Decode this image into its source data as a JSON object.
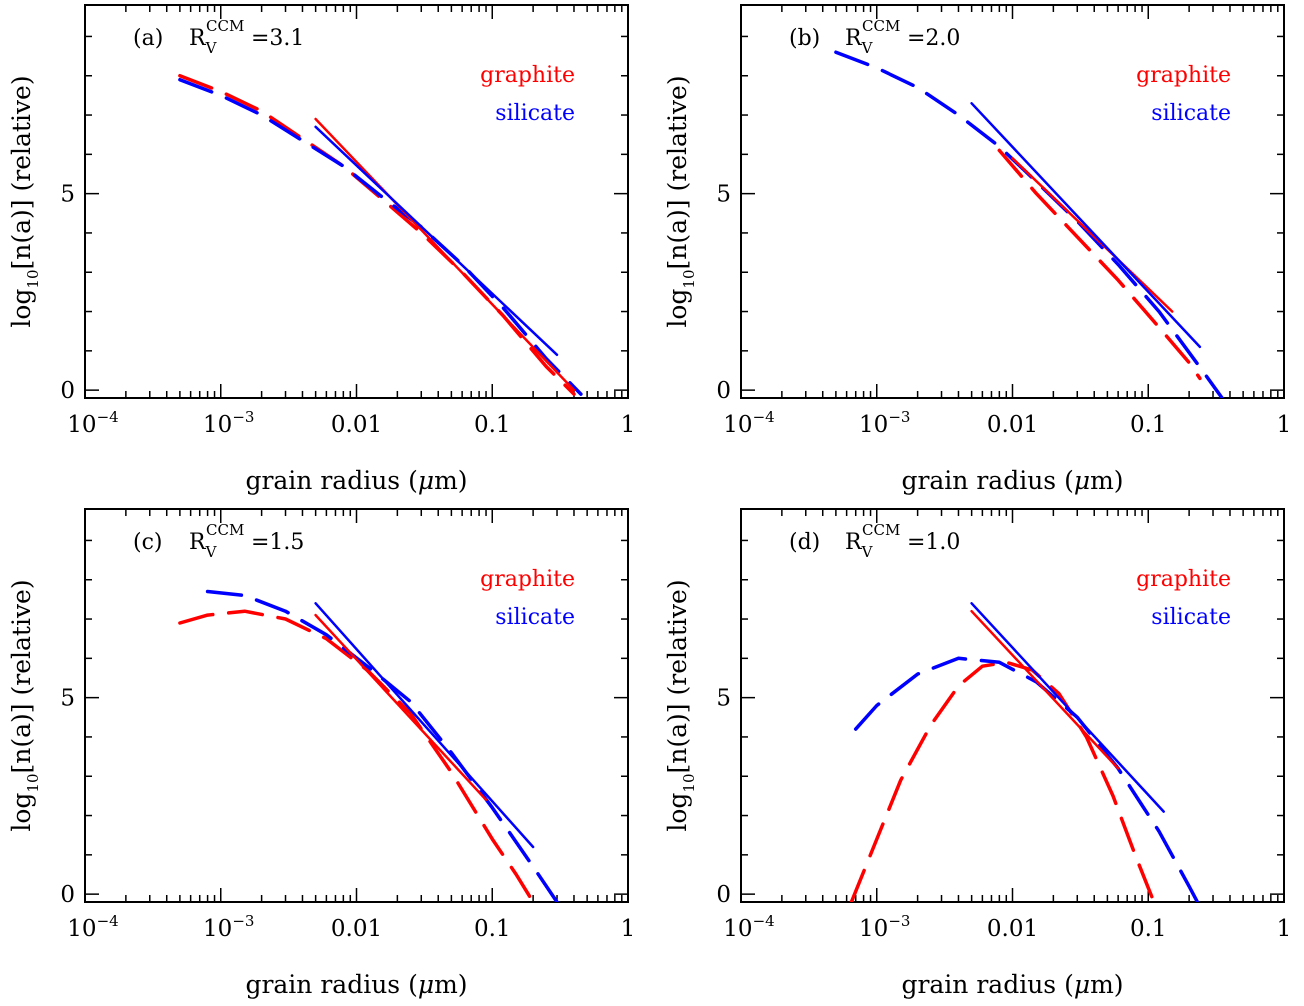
{
  "chart_data": [
    {
      "type": "line",
      "panel_label": "(a)",
      "rv_label": "R",
      "rv_sub": "V",
      "rv_sup": "CCM",
      "rv_value": "=3.1",
      "xlabel_text": "grain radius (",
      "xlabel_mu": "μ",
      "xlabel_end": "m)",
      "ylabel_text": "log",
      "ylabel_sub": "10",
      "ylabel_end": "[n(a)] (relative)",
      "x_scale": "log",
      "xlim": [
        0.0001,
        1
      ],
      "ylim": [
        -0.2,
        9.8
      ],
      "x_ticks": [
        {
          "exp": "-4",
          "value": 0.0001
        },
        {
          "exp": "-3",
          "value": 0.001
        },
        {
          "text": "0.01",
          "value": 0.01
        },
        {
          "text": "0.1",
          "value": 0.1
        },
        {
          "text": "1",
          "value": 1
        }
      ],
      "y_ticks": [
        {
          "text": "0",
          "value": 0
        },
        {
          "text": "5",
          "value": 5
        }
      ],
      "legend": [
        "graphite",
        "silicate"
      ],
      "colors": {
        "graphite": "#ff0000",
        "silicate": "#0000ff"
      },
      "series": [
        {
          "material": "graphite",
          "style": "dashed",
          "x": [
            0.0005,
            0.001,
            0.002,
            0.004,
            0.008,
            0.015,
            0.03,
            0.06,
            0.12,
            0.25,
            0.4
          ],
          "y": [
            8.0,
            7.6,
            7.1,
            6.4,
            5.7,
            4.9,
            4.0,
            3.0,
            1.9,
            0.6,
            -0.1
          ]
        },
        {
          "material": "silicate",
          "style": "dashed",
          "x": [
            0.0005,
            0.001,
            0.002,
            0.004,
            0.008,
            0.015,
            0.03,
            0.06,
            0.12,
            0.25,
            0.45
          ],
          "y": [
            7.9,
            7.5,
            7.0,
            6.35,
            5.7,
            4.95,
            4.15,
            3.2,
            2.1,
            0.8,
            -0.1
          ]
        },
        {
          "material": "graphite",
          "style": "solid",
          "x": [
            0.005,
            0.4
          ],
          "y": [
            6.9,
            0.0
          ]
        },
        {
          "material": "silicate",
          "style": "solid",
          "x": [
            0.005,
            0.3
          ],
          "y": [
            6.7,
            0.9
          ]
        }
      ]
    },
    {
      "type": "line",
      "panel_label": "(b)",
      "rv_label": "R",
      "rv_sub": "V",
      "rv_sup": "CCM",
      "rv_value": "=2.0",
      "xlabel_text": "grain radius (",
      "xlabel_mu": "μ",
      "xlabel_end": "m)",
      "ylabel_text": "log",
      "ylabel_sub": "10",
      "ylabel_end": "[n(a)] (relative)",
      "x_scale": "log",
      "xlim": [
        0.0001,
        1
      ],
      "ylim": [
        -0.2,
        9.8
      ],
      "x_ticks": [
        {
          "exp": "-4",
          "value": 0.0001
        },
        {
          "exp": "-3",
          "value": 0.001
        },
        {
          "text": "0.01",
          "value": 0.01
        },
        {
          "text": "0.1",
          "value": 0.1
        },
        {
          "text": "1",
          "value": 1
        }
      ],
      "y_ticks": [
        {
          "text": "0",
          "value": 0
        },
        {
          "text": "5",
          "value": 5
        }
      ],
      "legend": [
        "graphite",
        "silicate"
      ],
      "colors": {
        "graphite": "#ff0000",
        "silicate": "#0000ff"
      },
      "series": [
        {
          "material": "graphite",
          "style": "dashed",
          "x": [
            0.008,
            0.015,
            0.03,
            0.06,
            0.12,
            0.2,
            0.24
          ],
          "y": [
            6.1,
            5.0,
            3.9,
            2.8,
            1.6,
            0.7,
            0.3
          ]
        },
        {
          "material": "silicate",
          "style": "dashed",
          "x": [
            0.0005,
            0.001,
            0.002,
            0.004,
            0.008,
            0.015,
            0.03,
            0.06,
            0.12,
            0.25,
            0.35
          ],
          "y": [
            8.6,
            8.2,
            7.7,
            7.0,
            6.2,
            5.3,
            4.3,
            3.2,
            2.0,
            0.5,
            -0.2
          ]
        },
        {
          "material": "graphite",
          "style": "solid",
          "x": [
            0.01,
            0.15
          ],
          "y": [
            5.9,
            2.0
          ]
        },
        {
          "material": "silicate",
          "style": "solid",
          "x": [
            0.005,
            0.24
          ],
          "y": [
            7.3,
            1.1
          ]
        }
      ]
    },
    {
      "type": "line",
      "panel_label": "(c)",
      "rv_label": "R",
      "rv_sub": "V",
      "rv_sup": "CCM",
      "rv_value": "=1.5",
      "xlabel_text": "grain radius (",
      "xlabel_mu": "μ",
      "xlabel_end": "m)",
      "ylabel_text": "log",
      "ylabel_sub": "10",
      "ylabel_end": "[n(a)] (relative)",
      "x_scale": "log",
      "xlim": [
        0.0001,
        1
      ],
      "ylim": [
        -0.2,
        9.8
      ],
      "x_ticks": [
        {
          "exp": "-4",
          "value": 0.0001
        },
        {
          "exp": "-3",
          "value": 0.001
        },
        {
          "text": "0.01",
          "value": 0.01
        },
        {
          "text": "0.1",
          "value": 0.1
        },
        {
          "text": "1",
          "value": 1
        }
      ],
      "y_ticks": [
        {
          "text": "0",
          "value": 0
        },
        {
          "text": "5",
          "value": 5
        }
      ],
      "legend": [
        "graphite",
        "silicate"
      ],
      "colors": {
        "graphite": "#ff0000",
        "silicate": "#0000ff"
      },
      "series": [
        {
          "material": "graphite",
          "style": "dashed",
          "x": [
            0.0005,
            0.0008,
            0.0015,
            0.003,
            0.006,
            0.012,
            0.025,
            0.05,
            0.1,
            0.15,
            0.2
          ],
          "y": [
            6.9,
            7.1,
            7.2,
            7.0,
            6.5,
            5.7,
            4.6,
            3.1,
            1.4,
            0.5,
            -0.2
          ]
        },
        {
          "material": "silicate",
          "style": "dashed",
          "x": [
            0.0008,
            0.0015,
            0.003,
            0.006,
            0.012,
            0.025,
            0.05,
            0.1,
            0.2,
            0.3
          ],
          "y": [
            7.7,
            7.6,
            7.2,
            6.6,
            5.8,
            4.9,
            3.6,
            2.2,
            0.7,
            -0.2
          ]
        },
        {
          "material": "graphite",
          "style": "solid",
          "x": [
            0.005,
            0.09
          ],
          "y": [
            7.1,
            2.4
          ]
        },
        {
          "material": "silicate",
          "style": "solid",
          "x": [
            0.005,
            0.2
          ],
          "y": [
            7.4,
            1.2
          ]
        }
      ]
    },
    {
      "type": "line",
      "panel_label": "(d)",
      "rv_label": "R",
      "rv_sub": "V",
      "rv_sup": "CCM",
      "rv_value": "=1.0",
      "xlabel_text": "grain radius (",
      "xlabel_mu": "μ",
      "xlabel_end": "m)",
      "ylabel_text": "log",
      "ylabel_sub": "10",
      "ylabel_end": "[n(a)] (relative)",
      "x_scale": "log",
      "xlim": [
        0.0001,
        1
      ],
      "ylim": [
        -0.2,
        9.8
      ],
      "x_ticks": [
        {
          "exp": "-4",
          "value": 0.0001
        },
        {
          "exp": "-3",
          "value": 0.001
        },
        {
          "text": "0.01",
          "value": 0.01
        },
        {
          "text": "0.1",
          "value": 0.1
        },
        {
          "text": "1",
          "value": 1
        }
      ],
      "y_ticks": [
        {
          "text": "0",
          "value": 0
        },
        {
          "text": "5",
          "value": 5
        }
      ],
      "legend": [
        "graphite",
        "silicate"
      ],
      "colors": {
        "graphite": "#ff0000",
        "silicate": "#0000ff"
      },
      "series": [
        {
          "material": "graphite",
          "style": "dashed",
          "x": [
            0.00065,
            0.001,
            0.0015,
            0.0025,
            0.004,
            0.006,
            0.009,
            0.014,
            0.022,
            0.035,
            0.055,
            0.08,
            0.11
          ],
          "y": [
            -0.2,
            1.4,
            2.9,
            4.3,
            5.3,
            5.8,
            5.9,
            5.7,
            5.1,
            4.0,
            2.5,
            1.0,
            -0.2
          ]
        },
        {
          "material": "silicate",
          "style": "dashed",
          "x": [
            0.0007,
            0.001,
            0.002,
            0.004,
            0.008,
            0.015,
            0.03,
            0.06,
            0.12,
            0.2,
            0.23
          ],
          "y": [
            4.2,
            4.8,
            5.6,
            6.0,
            5.9,
            5.4,
            4.5,
            3.2,
            1.6,
            0.2,
            -0.2
          ]
        },
        {
          "material": "graphite",
          "style": "solid",
          "x": [
            0.005,
            0.06
          ],
          "y": [
            7.2,
            3.2
          ]
        },
        {
          "material": "silicate",
          "style": "solid",
          "x": [
            0.005,
            0.13
          ],
          "y": [
            7.4,
            2.1
          ]
        }
      ]
    }
  ]
}
